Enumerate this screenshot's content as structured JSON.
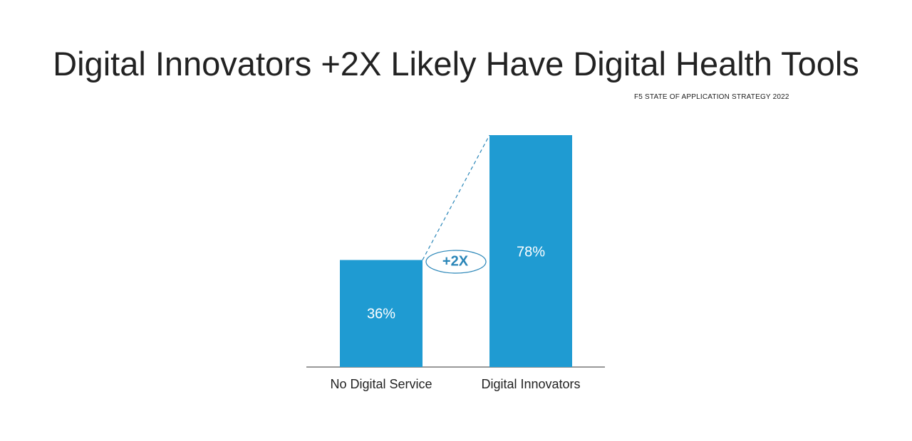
{
  "title": "Digital Innovators +2X Likely Have Digital Health Tools",
  "source": "F5 STATE  OF  APPLICATION  STRATEGY 2022",
  "colors": {
    "bar": "#1f9bd2",
    "callout": "#2a86b8",
    "axis": "#333333"
  },
  "chart_data": {
    "type": "bar",
    "categories": [
      "No Digital Service",
      "Digital Innovators"
    ],
    "values": [
      36,
      78
    ],
    "value_labels": [
      "36%",
      "78%"
    ],
    "title": "Digital Innovators +2X Likely Have Digital Health Tools",
    "xlabel": "",
    "ylabel": "",
    "ylim": [
      0,
      78
    ],
    "grid": false,
    "annotation": "+2X"
  }
}
